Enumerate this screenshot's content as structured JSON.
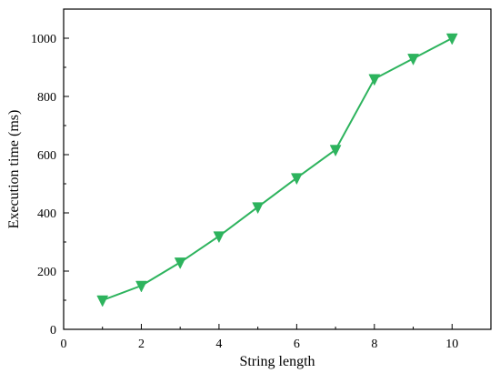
{
  "chart_data": {
    "type": "line",
    "title": "",
    "xlabel": "String length",
    "ylabel": "Execution time (ms)",
    "xlim": [
      0,
      11
    ],
    "ylim": [
      0,
      1100
    ],
    "x_ticks": [
      0,
      2,
      4,
      6,
      8,
      10
    ],
    "y_ticks": [
      0,
      200,
      400,
      600,
      800,
      1000
    ],
    "grid": false,
    "legend": "none",
    "marker": "triangle-down",
    "colors": {
      "series": "#2db35d",
      "axes": "#000000"
    },
    "series": [
      {
        "x": [
          1,
          2,
          3,
          4,
          5,
          6,
          7,
          8,
          9,
          10
        ],
        "values": [
          100,
          150,
          230,
          320,
          420,
          520,
          617,
          860,
          930,
          1000
        ]
      }
    ]
  }
}
